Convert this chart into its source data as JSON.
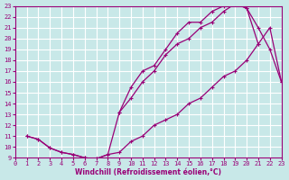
{
  "xlabel": "Windchill (Refroidissement éolien,°C)",
  "bg_color": "#c8e8e8",
  "grid_color": "#ffffff",
  "line_color": "#990077",
  "xlim": [
    0,
    23
  ],
  "ylim": [
    9,
    23
  ],
  "xticks": [
    0,
    1,
    2,
    3,
    4,
    5,
    6,
    7,
    8,
    9,
    10,
    11,
    12,
    13,
    14,
    15,
    16,
    17,
    18,
    19,
    20,
    21,
    22,
    23
  ],
  "yticks": [
    9,
    10,
    11,
    12,
    13,
    14,
    15,
    16,
    17,
    18,
    19,
    20,
    21,
    22,
    23
  ],
  "curve_upper_x": [
    1,
    2,
    3,
    4,
    5,
    6,
    7,
    8,
    9,
    10,
    11,
    12,
    13,
    14,
    15,
    16,
    17,
    18,
    19,
    20,
    21
  ],
  "curve_upper_y": [
    11,
    10.7,
    9.9,
    9.5,
    9.3,
    9.0,
    8.9,
    9.3,
    13.2,
    15.5,
    17.0,
    17.5,
    19.0,
    20.5,
    21.5,
    21.5,
    22.5,
    23.0,
    23.2,
    22.8,
    19.5
  ],
  "curve_lower_x": [
    1,
    2,
    3,
    4,
    5,
    6,
    7,
    8,
    9,
    10,
    11,
    12,
    13,
    14,
    15,
    16,
    17,
    18,
    19,
    20,
    21,
    22,
    23
  ],
  "curve_lower_y": [
    11,
    10.7,
    9.9,
    9.5,
    9.3,
    9.0,
    8.9,
    9.3,
    9.5,
    10.5,
    11.0,
    12.0,
    12.5,
    13.0,
    14.0,
    14.5,
    15.5,
    16.5,
    17.0,
    18.0,
    19.5,
    21.0,
    16.0
  ],
  "curve_mid_x": [
    9,
    10,
    11,
    12,
    13,
    14,
    15,
    16,
    17,
    18,
    19,
    20,
    21,
    22,
    23
  ],
  "curve_mid_y": [
    13.2,
    14.5,
    16.0,
    17.0,
    18.5,
    19.5,
    20.0,
    21.0,
    21.5,
    22.5,
    23.2,
    22.8,
    21.0,
    19.0,
    16.0
  ]
}
